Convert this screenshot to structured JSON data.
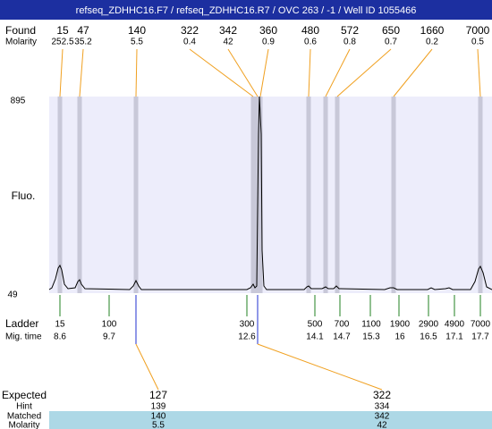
{
  "title": "refseq_ZDHHC16.F7 / refseq_ZDHHC16.R7 / OVC 263 / -1 / Well ID 1055466",
  "found": {
    "label": "Found",
    "molarity_label": "Molarity",
    "sizes": [
      15,
      47,
      140,
      322,
      342,
      360,
      480,
      572,
      650,
      1660,
      7000
    ],
    "molarity": [
      252.5,
      35.2,
      5.5,
      0.4,
      42,
      0.9,
      0.6,
      0.8,
      0.7,
      0.2,
      0.5
    ]
  },
  "y_axis": {
    "label": "Fluo.",
    "max": 895,
    "min": 49
  },
  "ladder": {
    "label": "Ladder",
    "mig_label": "Mig. time",
    "sizes": [
      15,
      100,
      300,
      500,
      700,
      1100,
      1900,
      2900,
      4900,
      7000
    ],
    "times": [
      8.6,
      9.7,
      12.6,
      14.1,
      14.7,
      15.3,
      16,
      16.5,
      17.1,
      17.7
    ]
  },
  "expected": {
    "label": "Expected",
    "hint_label": "Hint",
    "matched_label": "Matched",
    "molarity_label": "Molarity",
    "columns": [
      {
        "expected": 127,
        "hint": 139,
        "matched": 140,
        "molarity": 5.5
      },
      {
        "expected": 322,
        "hint": 334,
        "matched": 342,
        "molarity": 42
      }
    ]
  }
}
